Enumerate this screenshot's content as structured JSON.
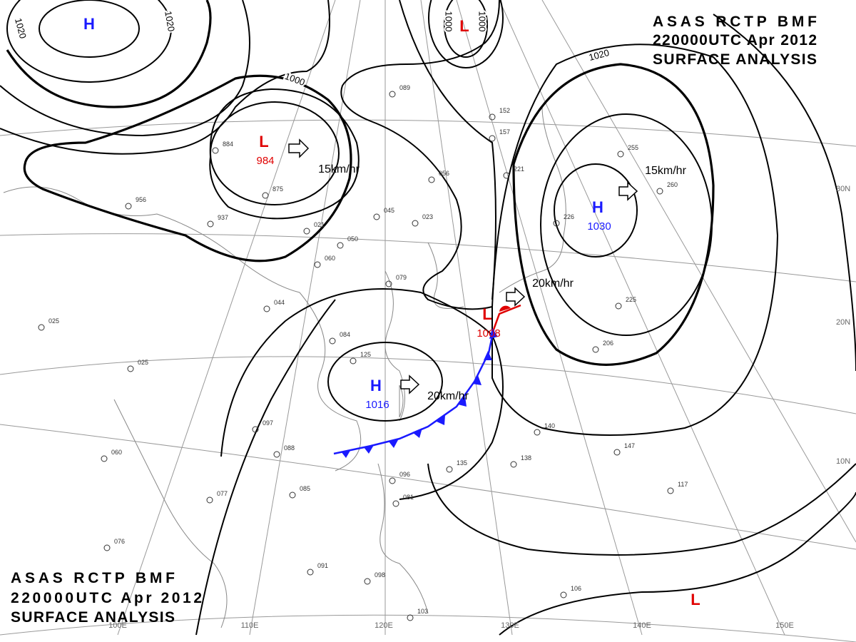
{
  "header": {
    "lines": [
      "ASAS RCTP BMF",
      "220000UTC Apr 2012",
      "SURFACE ANALYSIS"
    ]
  },
  "pressure_centers": [
    {
      "symbol": "H"
    },
    {
      "symbol": "L"
    },
    {
      "symbol": "L",
      "value": "984"
    },
    {
      "symbol": "H",
      "value": "1030"
    },
    {
      "symbol": "L",
      "value": "1008"
    },
    {
      "symbol": "H",
      "value": "1016"
    },
    {
      "symbol": "L"
    }
  ],
  "isobar_labels": [
    "1020",
    "1020",
    "1000",
    "1000",
    "1000",
    "1020"
  ],
  "motion_labels": [
    "15km/hr",
    "15km/hr",
    "20km/hr",
    "20km/hr"
  ],
  "latitude_labels": [
    "30N",
    "20N",
    "10N"
  ],
  "longitude_labels": [
    "100E",
    "110E",
    "120E",
    "130E",
    "140E",
    "150E"
  ],
  "stations": [
    "884",
    "875",
    "937",
    "956",
    "021",
    "050",
    "060",
    "044",
    "025",
    "025",
    "084",
    "125",
    "097",
    "088",
    "060",
    "085",
    "077",
    "076",
    "091",
    "098",
    "135",
    "138",
    "140",
    "147",
    "117",
    "106",
    "103",
    "096",
    "081",
    "255",
    "260",
    "225",
    "206",
    "056",
    "045",
    "023",
    "079",
    "089",
    "152",
    "157",
    "221",
    "226"
  ]
}
